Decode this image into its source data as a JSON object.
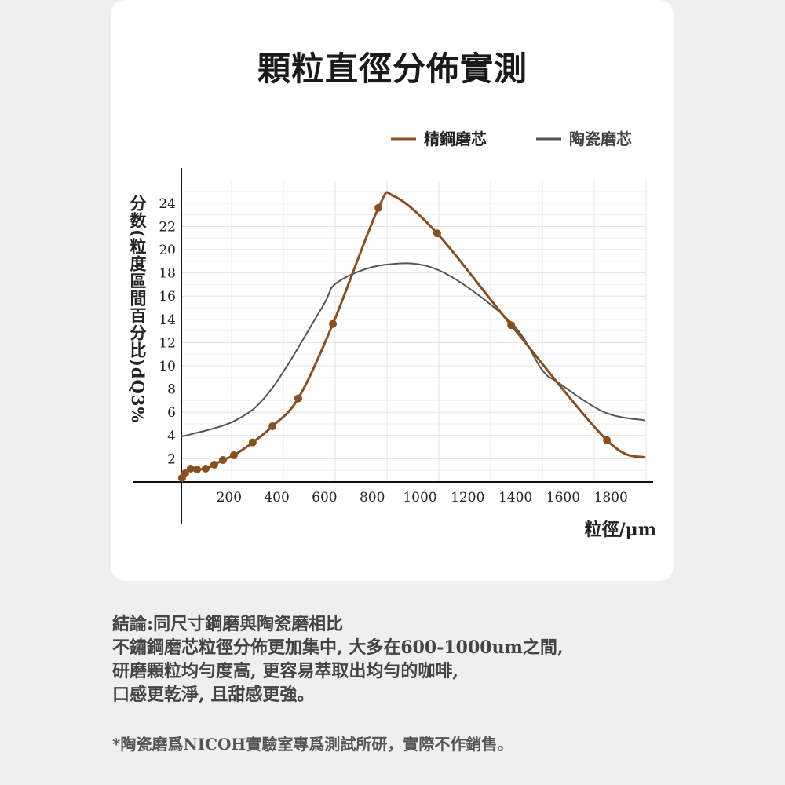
{
  "chart_data": {
    "type": "line",
    "title": "顆粒直徑分佈實測",
    "xlabel": "粒徑/μm",
    "ylabel": "分数(粒度區間百分比)dQ3%",
    "xticks": [
      200,
      400,
      600,
      800,
      1000,
      1200,
      1400,
      1600,
      1800
    ],
    "yticks": [
      2,
      4,
      6,
      8,
      10,
      12,
      14,
      16,
      18,
      20,
      22,
      24
    ],
    "xlim": [
      0,
      1960
    ],
    "ylim": [
      0,
      25
    ],
    "grid": true,
    "legend_position": "top-right",
    "series": [
      {
        "name": "精鋼磨芯",
        "color": "#8b4f1e",
        "markers": true,
        "x": [
          3,
          16,
          39,
          66,
          102,
          138,
          174,
          220,
          299,
          382,
          490,
          635,
          826,
          891,
          1072,
          1382,
          1783,
          1944
        ],
        "y": [
          0.34,
          0.74,
          1.15,
          1.08,
          1.15,
          1.49,
          1.89,
          2.3,
          3.4,
          4.8,
          7.2,
          13.6,
          23.6,
          24.6,
          21.4,
          13.5,
          3.6,
          2.1
        ],
        "marker_idx": [
          0,
          1,
          2,
          3,
          4,
          5,
          6,
          7,
          8,
          9,
          10,
          11,
          12,
          14,
          15,
          16
        ]
      },
      {
        "name": "陶瓷磨芯",
        "color": "#555555",
        "markers": false,
        "x": [
          0,
          227,
          378,
          589,
          655,
          852,
          1082,
          1378,
          1510,
          1576,
          1773,
          1944
        ],
        "y": [
          3.9,
          5.3,
          8,
          15,
          17.2,
          18.7,
          18.2,
          13.8,
          9.7,
          8.6,
          6,
          5.3
        ]
      }
    ]
  },
  "notes": {
    "lines": [
      "結論:同尺寸鋼磨與陶瓷磨相比",
      "不鏽鋼磨芯粒徑分佈更加集中, 大多在600-1000um之間,",
      "研磨顆粒均勻度高, 更容易萃取出均勻的咖啡,",
      "口感更乾淨, 且甜感更強。"
    ],
    "footnote": "*陶瓷磨爲NICOH實驗室專爲測試所研，實際不作銷售。"
  }
}
